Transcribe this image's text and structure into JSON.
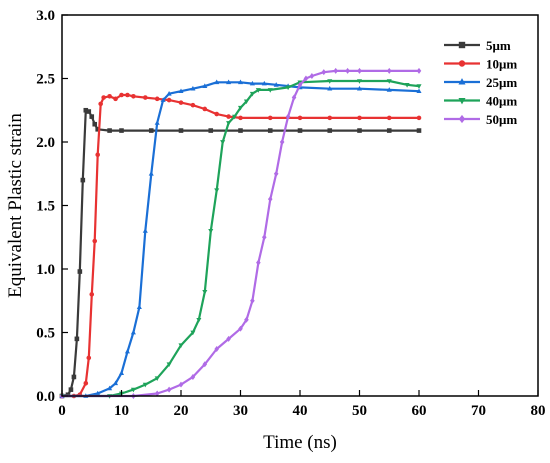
{
  "chart_data": {
    "type": "line",
    "title": "",
    "xlabel": "Time (ns)",
    "ylabel": "Equivalent Plastic strain",
    "xlim": [
      0,
      80
    ],
    "ylim": [
      0,
      3.0
    ],
    "x_ticks": [
      "0",
      "10",
      "20",
      "30",
      "40",
      "50",
      "60",
      "70",
      "80"
    ],
    "y_ticks": [
      "0.0",
      "0.5",
      "1.0",
      "1.5",
      "2.0",
      "2.5",
      "3.0"
    ],
    "grid": false,
    "legend_position": "top-right",
    "series": [
      {
        "name": "5μm",
        "color": "#3a3a3a",
        "marker": "square",
        "points": [
          [
            0,
            0
          ],
          [
            1,
            0.01
          ],
          [
            1.5,
            0.05
          ],
          [
            2,
            0.15
          ],
          [
            2.5,
            0.45
          ],
          [
            3,
            0.98
          ],
          [
            3.5,
            1.7
          ],
          [
            4,
            2.25
          ],
          [
            4.5,
            2.24
          ],
          [
            5,
            2.2
          ],
          [
            5.5,
            2.14
          ],
          [
            6,
            2.1
          ],
          [
            8,
            2.09
          ],
          [
            10,
            2.09
          ],
          [
            15,
            2.09
          ],
          [
            20,
            2.09
          ],
          [
            25,
            2.09
          ],
          [
            30,
            2.09
          ],
          [
            35,
            2.09
          ],
          [
            40,
            2.09
          ],
          [
            45,
            2.09
          ],
          [
            50,
            2.09
          ],
          [
            55,
            2.09
          ],
          [
            60,
            2.09
          ]
        ]
      },
      {
        "name": "10μm",
        "color": "#e83232",
        "marker": "circle",
        "points": [
          [
            0,
            0
          ],
          [
            2,
            0
          ],
          [
            3,
            0.01
          ],
          [
            4,
            0.1
          ],
          [
            4.5,
            0.3
          ],
          [
            5,
            0.8
          ],
          [
            5.5,
            1.22
          ],
          [
            6,
            1.9
          ],
          [
            6.5,
            2.3
          ],
          [
            7,
            2.35
          ],
          [
            8,
            2.36
          ],
          [
            9,
            2.34
          ],
          [
            10,
            2.37
          ],
          [
            11,
            2.37
          ],
          [
            12,
            2.36
          ],
          [
            14,
            2.35
          ],
          [
            16,
            2.34
          ],
          [
            18,
            2.33
          ],
          [
            20,
            2.31
          ],
          [
            22,
            2.29
          ],
          [
            24,
            2.26
          ],
          [
            26,
            2.22
          ],
          [
            28,
            2.2
          ],
          [
            30,
            2.19
          ],
          [
            35,
            2.19
          ],
          [
            40,
            2.19
          ],
          [
            45,
            2.19
          ],
          [
            50,
            2.19
          ],
          [
            55,
            2.19
          ],
          [
            60,
            2.19
          ]
        ]
      },
      {
        "name": "25μm",
        "color": "#1a6fd6",
        "marker": "triangle",
        "points": [
          [
            0,
            0
          ],
          [
            4,
            0
          ],
          [
            6,
            0.02
          ],
          [
            8,
            0.06
          ],
          [
            9,
            0.1
          ],
          [
            10,
            0.18
          ],
          [
            11,
            0.35
          ],
          [
            12,
            0.5
          ],
          [
            13,
            0.7
          ],
          [
            14,
            1.3
          ],
          [
            15,
            1.75
          ],
          [
            16,
            2.15
          ],
          [
            17,
            2.33
          ],
          [
            18,
            2.38
          ],
          [
            20,
            2.4
          ],
          [
            22,
            2.42
          ],
          [
            24,
            2.44
          ],
          [
            26,
            2.47
          ],
          [
            28,
            2.47
          ],
          [
            30,
            2.47
          ],
          [
            32,
            2.46
          ],
          [
            34,
            2.46
          ],
          [
            36,
            2.45
          ],
          [
            38,
            2.44
          ],
          [
            40,
            2.43
          ],
          [
            45,
            2.42
          ],
          [
            50,
            2.42
          ],
          [
            55,
            2.41
          ],
          [
            60,
            2.4
          ]
        ]
      },
      {
        "name": "40μm",
        "color": "#1ea35a",
        "marker": "inverted-triangle",
        "points": [
          [
            0,
            0
          ],
          [
            8,
            0
          ],
          [
            10,
            0.02
          ],
          [
            12,
            0.05
          ],
          [
            14,
            0.09
          ],
          [
            16,
            0.14
          ],
          [
            18,
            0.25
          ],
          [
            20,
            0.4
          ],
          [
            22,
            0.5
          ],
          [
            23,
            0.6
          ],
          [
            24,
            0.82
          ],
          [
            25,
            1.3
          ],
          [
            26,
            1.62
          ],
          [
            27,
            2.0
          ],
          [
            28,
            2.15
          ],
          [
            29,
            2.2
          ],
          [
            30,
            2.27
          ],
          [
            31,
            2.32
          ],
          [
            32,
            2.38
          ],
          [
            33,
            2.41
          ],
          [
            35,
            2.41
          ],
          [
            38,
            2.43
          ],
          [
            40,
            2.47
          ],
          [
            45,
            2.48
          ],
          [
            50,
            2.48
          ],
          [
            55,
            2.48
          ],
          [
            58,
            2.45
          ],
          [
            60,
            2.44
          ]
        ]
      },
      {
        "name": "50μm",
        "color": "#b06be6",
        "marker": "diamond",
        "points": [
          [
            0,
            0
          ],
          [
            12,
            0
          ],
          [
            16,
            0.02
          ],
          [
            18,
            0.05
          ],
          [
            20,
            0.09
          ],
          [
            22,
            0.15
          ],
          [
            24,
            0.25
          ],
          [
            26,
            0.37
          ],
          [
            28,
            0.45
          ],
          [
            30,
            0.53
          ],
          [
            31,
            0.6
          ],
          [
            32,
            0.75
          ],
          [
            33,
            1.05
          ],
          [
            34,
            1.25
          ],
          [
            35,
            1.55
          ],
          [
            36,
            1.75
          ],
          [
            37,
            2.0
          ],
          [
            38,
            2.2
          ],
          [
            39,
            2.35
          ],
          [
            40,
            2.45
          ],
          [
            41,
            2.5
          ],
          [
            42,
            2.52
          ],
          [
            44,
            2.55
          ],
          [
            46,
            2.56
          ],
          [
            48,
            2.56
          ],
          [
            50,
            2.56
          ],
          [
            55,
            2.56
          ],
          [
            60,
            2.56
          ]
        ]
      }
    ]
  }
}
